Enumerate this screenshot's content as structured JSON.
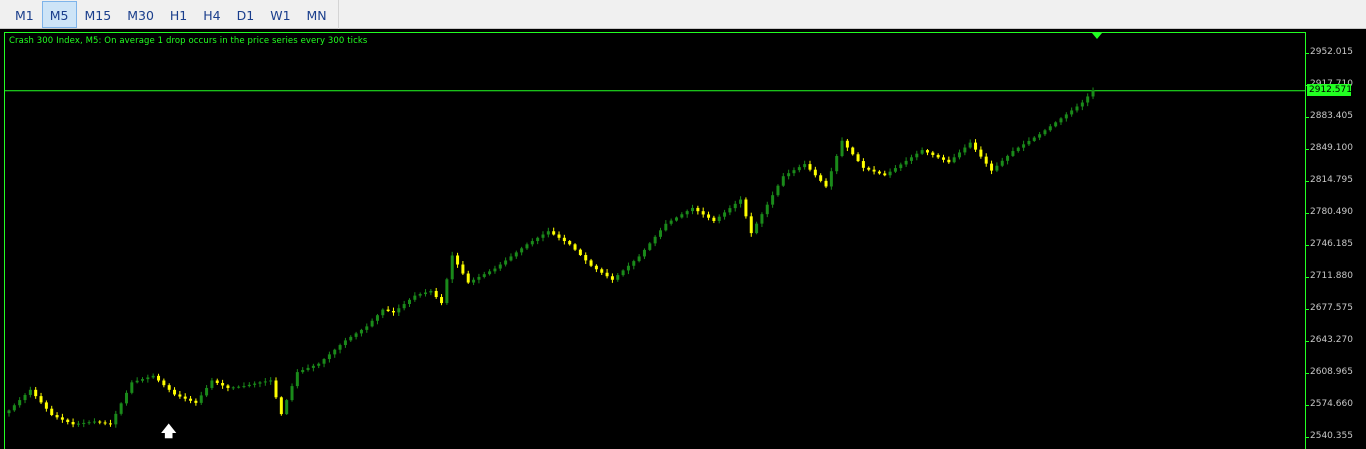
{
  "toolbar": {
    "timeframes": [
      {
        "label": "M1",
        "active": false
      },
      {
        "label": "M5",
        "active": true
      },
      {
        "label": "M15",
        "active": false
      },
      {
        "label": "M30",
        "active": false
      },
      {
        "label": "H1",
        "active": false
      },
      {
        "label": "H4",
        "active": false
      },
      {
        "label": "D1",
        "active": false
      },
      {
        "label": "W1",
        "active": false
      },
      {
        "label": "MN",
        "active": false
      }
    ]
  },
  "chart": {
    "title": "Crash 300 Index, M5:  On average 1 drop occurs in the price series every 300 ticks",
    "bid_price": "2912.571",
    "bid_value": 2912.571,
    "arrow_glyph": "🡅",
    "colors": {
      "background": "#000000",
      "frame": "#22ff22",
      "bull_candle": "#1a8a1a",
      "bear_candle": "#ffff00",
      "axis_text": "#c8c8c8"
    }
  },
  "chart_data": {
    "type": "candlestick",
    "y_ticks": [
      "2952.015",
      "2917.710",
      "2883.405",
      "2849.100",
      "2814.795",
      "2780.490",
      "2746.185",
      "2711.880",
      "2677.575",
      "2643.270",
      "2608.965",
      "2574.660",
      "2540.355"
    ],
    "ylim": [
      2536.0,
      2960.0
    ],
    "anchor_closes": [
      2570,
      2592,
      2565,
      2555,
      2558,
      2555,
      2600,
      2607,
      2587,
      2578,
      2602,
      2594,
      2596,
      2600,
      2602,
      2566,
      2611,
      2620,
      2645,
      2660,
      2678,
      2675,
      2693,
      2698,
      2685,
      2736,
      2707,
      2722,
      2748,
      2762,
      2748,
      2725,
      2710,
      2735,
      2770,
      2787,
      2773,
      2796,
      2760,
      2821,
      2834,
      2810,
      2859,
      2830,
      2822,
      2849,
      2836,
      2857,
      2827,
      2848,
      2866,
      2900,
      2913
    ],
    "anchor_index": [
      0,
      4,
      8,
      12,
      16,
      19,
      23,
      27,
      31,
      35,
      38,
      41,
      44,
      47,
      49,
      51,
      54,
      58,
      63,
      67,
      70,
      72,
      76,
      79,
      81,
      83,
      86,
      91,
      97,
      101,
      105,
      109,
      113,
      118,
      123,
      128,
      132,
      137,
      139,
      145,
      149,
      153,
      156,
      160,
      164,
      171,
      176,
      180,
      184,
      188,
      193,
      201,
      203
    ],
    "candle_count": 204
  }
}
